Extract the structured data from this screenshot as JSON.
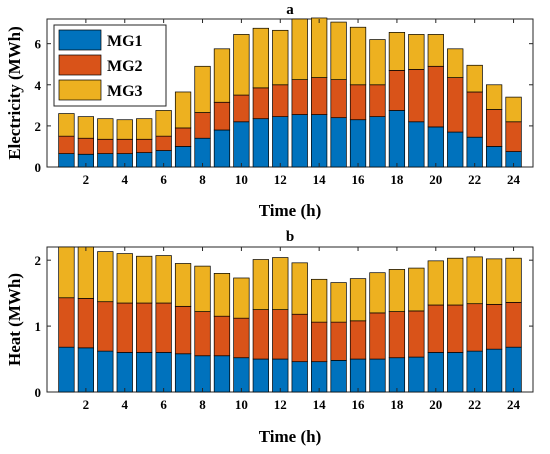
{
  "chart_data": [
    {
      "type": "bar",
      "stacked": true,
      "title": "a",
      "xlabel": "Time (h)",
      "ylabel": "Electricity (MWh)",
      "xlim": [
        0,
        25
      ],
      "ylim": [
        0,
        7.2
      ],
      "xticks": [
        2,
        4,
        6,
        8,
        10,
        12,
        14,
        16,
        18,
        20,
        22,
        24
      ],
      "yticks": [
        0,
        2,
        4,
        6
      ],
      "grid": false,
      "legend_position": "top-left",
      "categories": [
        1,
        2,
        3,
        4,
        5,
        6,
        7,
        8,
        9,
        10,
        11,
        12,
        13,
        14,
        15,
        16,
        17,
        18,
        19,
        20,
        21,
        22,
        23,
        24
      ],
      "series": [
        {
          "name": "MG1",
          "color": "#0072BD",
          "values": [
            0.65,
            0.62,
            0.65,
            0.65,
            0.7,
            0.8,
            1.0,
            1.4,
            1.8,
            2.2,
            2.35,
            2.45,
            2.55,
            2.55,
            2.4,
            2.3,
            2.45,
            2.75,
            2.2,
            1.95,
            1.7,
            1.45,
            1.0,
            0.75
          ]
        },
        {
          "name": "MG2",
          "color": "#D95319",
          "values": [
            0.85,
            0.78,
            0.7,
            0.7,
            0.65,
            0.7,
            0.9,
            1.25,
            1.35,
            1.3,
            1.5,
            1.55,
            1.7,
            1.8,
            1.85,
            1.7,
            1.55,
            1.95,
            2.55,
            2.95,
            2.65,
            2.2,
            1.8,
            1.45
          ]
        },
        {
          "name": "MG3",
          "color": "#EDB120",
          "values": [
            1.1,
            1.05,
            1.0,
            0.95,
            1.0,
            1.25,
            1.75,
            2.25,
            2.6,
            2.95,
            2.9,
            2.65,
            2.95,
            2.9,
            2.8,
            2.8,
            2.2,
            1.85,
            1.7,
            1.55,
            1.4,
            1.3,
            1.2,
            1.2
          ]
        }
      ]
    },
    {
      "type": "bar",
      "stacked": true,
      "title": "b",
      "xlabel": "Time (h)",
      "ylabel": "Heat (MWh)",
      "xlim": [
        0,
        25
      ],
      "ylim": [
        0,
        2.2
      ],
      "xticks": [
        2,
        4,
        6,
        8,
        10,
        12,
        14,
        16,
        18,
        20,
        22,
        24
      ],
      "yticks": [
        0,
        1,
        2
      ],
      "grid": false,
      "categories": [
        1,
        2,
        3,
        4,
        5,
        6,
        7,
        8,
        9,
        10,
        11,
        12,
        13,
        14,
        15,
        16,
        17,
        18,
        19,
        20,
        21,
        22,
        23,
        24
      ],
      "series": [
        {
          "name": "MG1",
          "color": "#0072BD",
          "values": [
            0.68,
            0.67,
            0.62,
            0.6,
            0.6,
            0.6,
            0.58,
            0.55,
            0.55,
            0.52,
            0.5,
            0.5,
            0.46,
            0.46,
            0.48,
            0.5,
            0.5,
            0.52,
            0.53,
            0.6,
            0.6,
            0.62,
            0.65,
            0.68
          ]
        },
        {
          "name": "MG2",
          "color": "#D95319",
          "values": [
            0.75,
            0.75,
            0.75,
            0.75,
            0.75,
            0.75,
            0.72,
            0.67,
            0.6,
            0.6,
            0.75,
            0.75,
            0.72,
            0.6,
            0.58,
            0.58,
            0.7,
            0.7,
            0.7,
            0.72,
            0.72,
            0.72,
            0.68,
            0.68
          ]
        },
        {
          "name": "MG3",
          "color": "#EDB120",
          "values": [
            0.77,
            0.78,
            0.76,
            0.75,
            0.71,
            0.72,
            0.65,
            0.69,
            0.65,
            0.61,
            0.76,
            0.79,
            0.78,
            0.65,
            0.6,
            0.64,
            0.61,
            0.64,
            0.65,
            0.67,
            0.71,
            0.71,
            0.69,
            0.67
          ]
        }
      ]
    }
  ]
}
